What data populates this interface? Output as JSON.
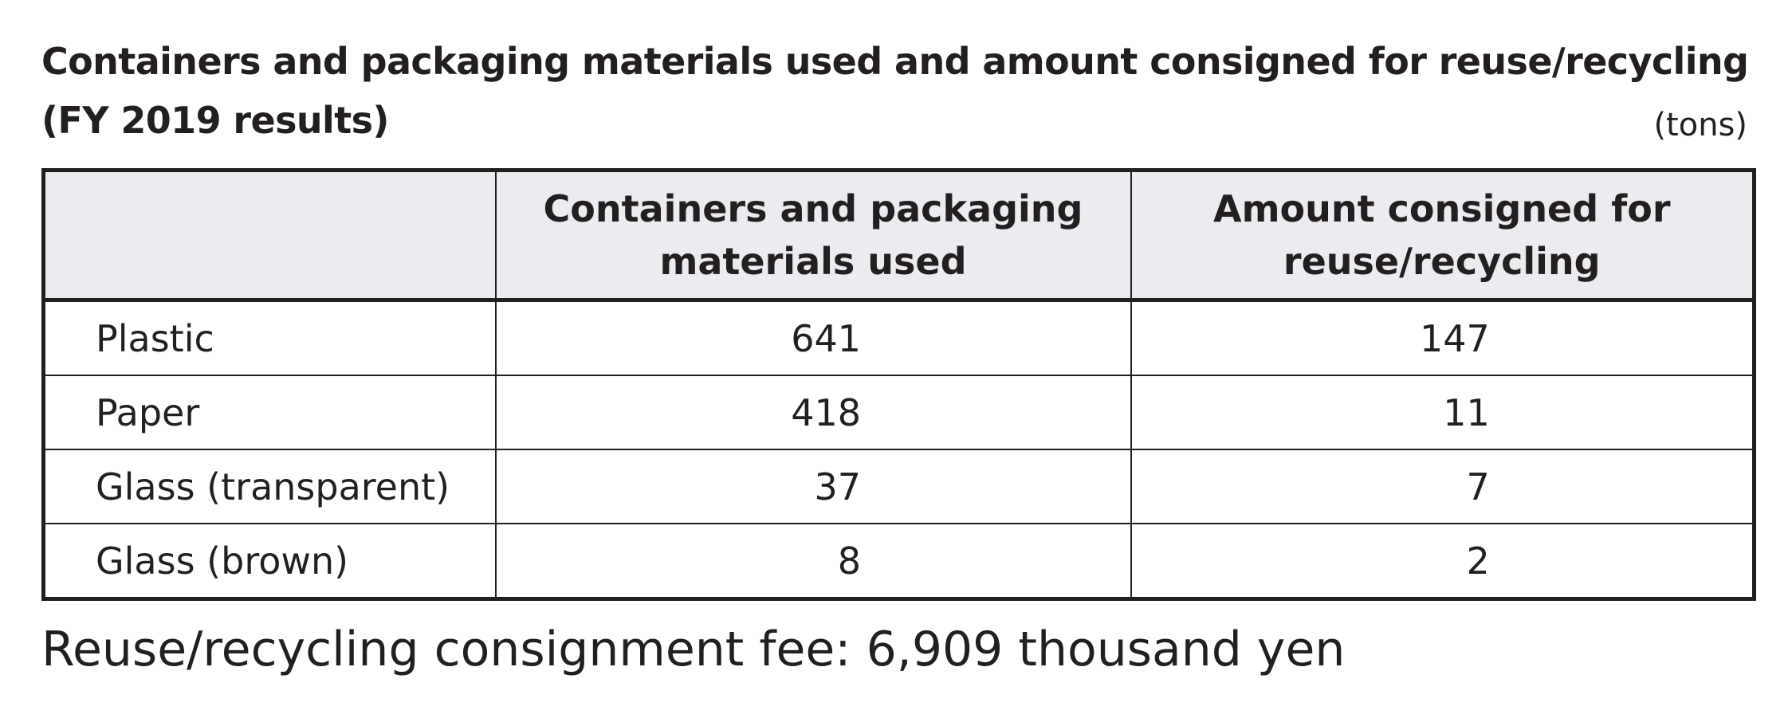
{
  "title": {
    "line1": "Containers and packaging materials used and amount consigned for reuse/recycling",
    "line2": "(FY 2019 results)"
  },
  "unit": "(tons)",
  "table": {
    "headers": [
      "",
      "Containers and packaging materials used",
      "Amount consigned for reuse/recycling"
    ],
    "rows": [
      {
        "label": "Plastic",
        "used": "641",
        "consigned": "147"
      },
      {
        "label": "Paper",
        "used": "418",
        "consigned": "11"
      },
      {
        "label": "Glass (transparent)",
        "used": "37",
        "consigned": "7"
      },
      {
        "label": "Glass (brown)",
        "used": "8",
        "consigned": "2"
      }
    ]
  },
  "note": "Reuse/recycling consignment fee: 6,909 thousand yen"
}
